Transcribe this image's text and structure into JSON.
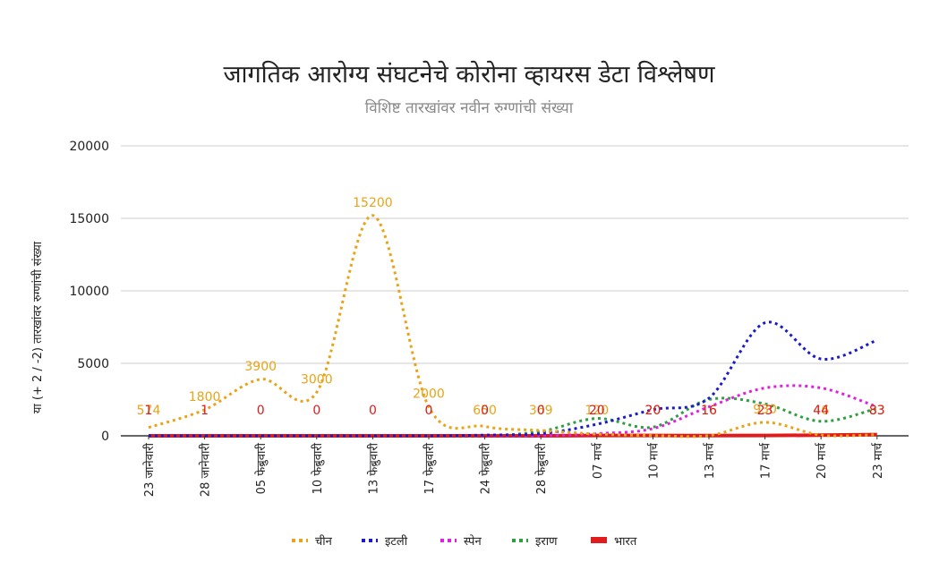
{
  "chart_data": {
    "type": "line",
    "title": "जागतिक आरोग्य संघटनेचे कोरोना व्हायरस डेटा विश्लेषण",
    "subtitle": "विशिष्ट तारखांवर नवीन रुग्णांची संख्या",
    "ylabel": "या (+ 2 / -2) तारखांवर रुग्णांची संख्या",
    "xlabel": "",
    "ylim": [
      0,
      20000
    ],
    "yticks": [
      "0",
      "5000",
      "10000",
      "15000",
      "20000"
    ],
    "categories": [
      "23 जानेवारी",
      "28 जानेवारी",
      "05 फेब्रुवारी",
      "10 फेब्रुवारी",
      "13 फेब्रुवारी",
      "17 फेब्रुवारी",
      "24 फेब्रुवारी",
      "28 फेब्रुवारी",
      "07 मार्च",
      "10 मार्च",
      "13 मार्च",
      "17 मार्च",
      "20 मार्च",
      "23 मार्च"
    ],
    "grid": true,
    "legend_position": "bottom",
    "series": [
      {
        "name": "चीन",
        "color": "#e8a317",
        "style": "dotted",
        "values": [
          574,
          1800,
          3900,
          3000,
          15200,
          2000,
          650,
          369,
          120,
          20,
          16,
          930,
          46,
          83
        ],
        "labels": [
          "574",
          "1800",
          "3900",
          "3000",
          "15200",
          "2000",
          "650",
          "369",
          "120",
          "20",
          "16",
          "930",
          "46",
          "83"
        ]
      },
      {
        "name": "इटली",
        "color": "#1a1acc",
        "style": "dotted",
        "values": [
          0,
          0,
          0,
          0,
          0,
          0,
          50,
          150,
          800,
          1800,
          2600,
          7800,
          5300,
          6600
        ]
      },
      {
        "name": "स्पेन",
        "color": "#e020e0",
        "style": "dotted",
        "values": [
          0,
          0,
          0,
          0,
          0,
          0,
          0,
          0,
          150,
          500,
          2000,
          3300,
          3300,
          2000
        ]
      },
      {
        "name": "इराण",
        "color": "#2e9e40",
        "style": "dotted",
        "values": [
          0,
          0,
          0,
          0,
          0,
          0,
          0,
          300,
          1200,
          600,
          2500,
          2200,
          1000,
          1900
        ]
      },
      {
        "name": "भारत",
        "color": "#e01b1b",
        "style": "solid",
        "values": [
          1,
          1,
          0,
          0,
          0,
          0,
          0,
          0,
          20,
          20,
          16,
          23,
          44,
          83
        ],
        "labels": [
          "1",
          "1",
          "0",
          "0",
          "0",
          "0",
          "0",
          "0",
          "20",
          "20",
          "16",
          "23",
          "44",
          "83"
        ]
      }
    ]
  }
}
